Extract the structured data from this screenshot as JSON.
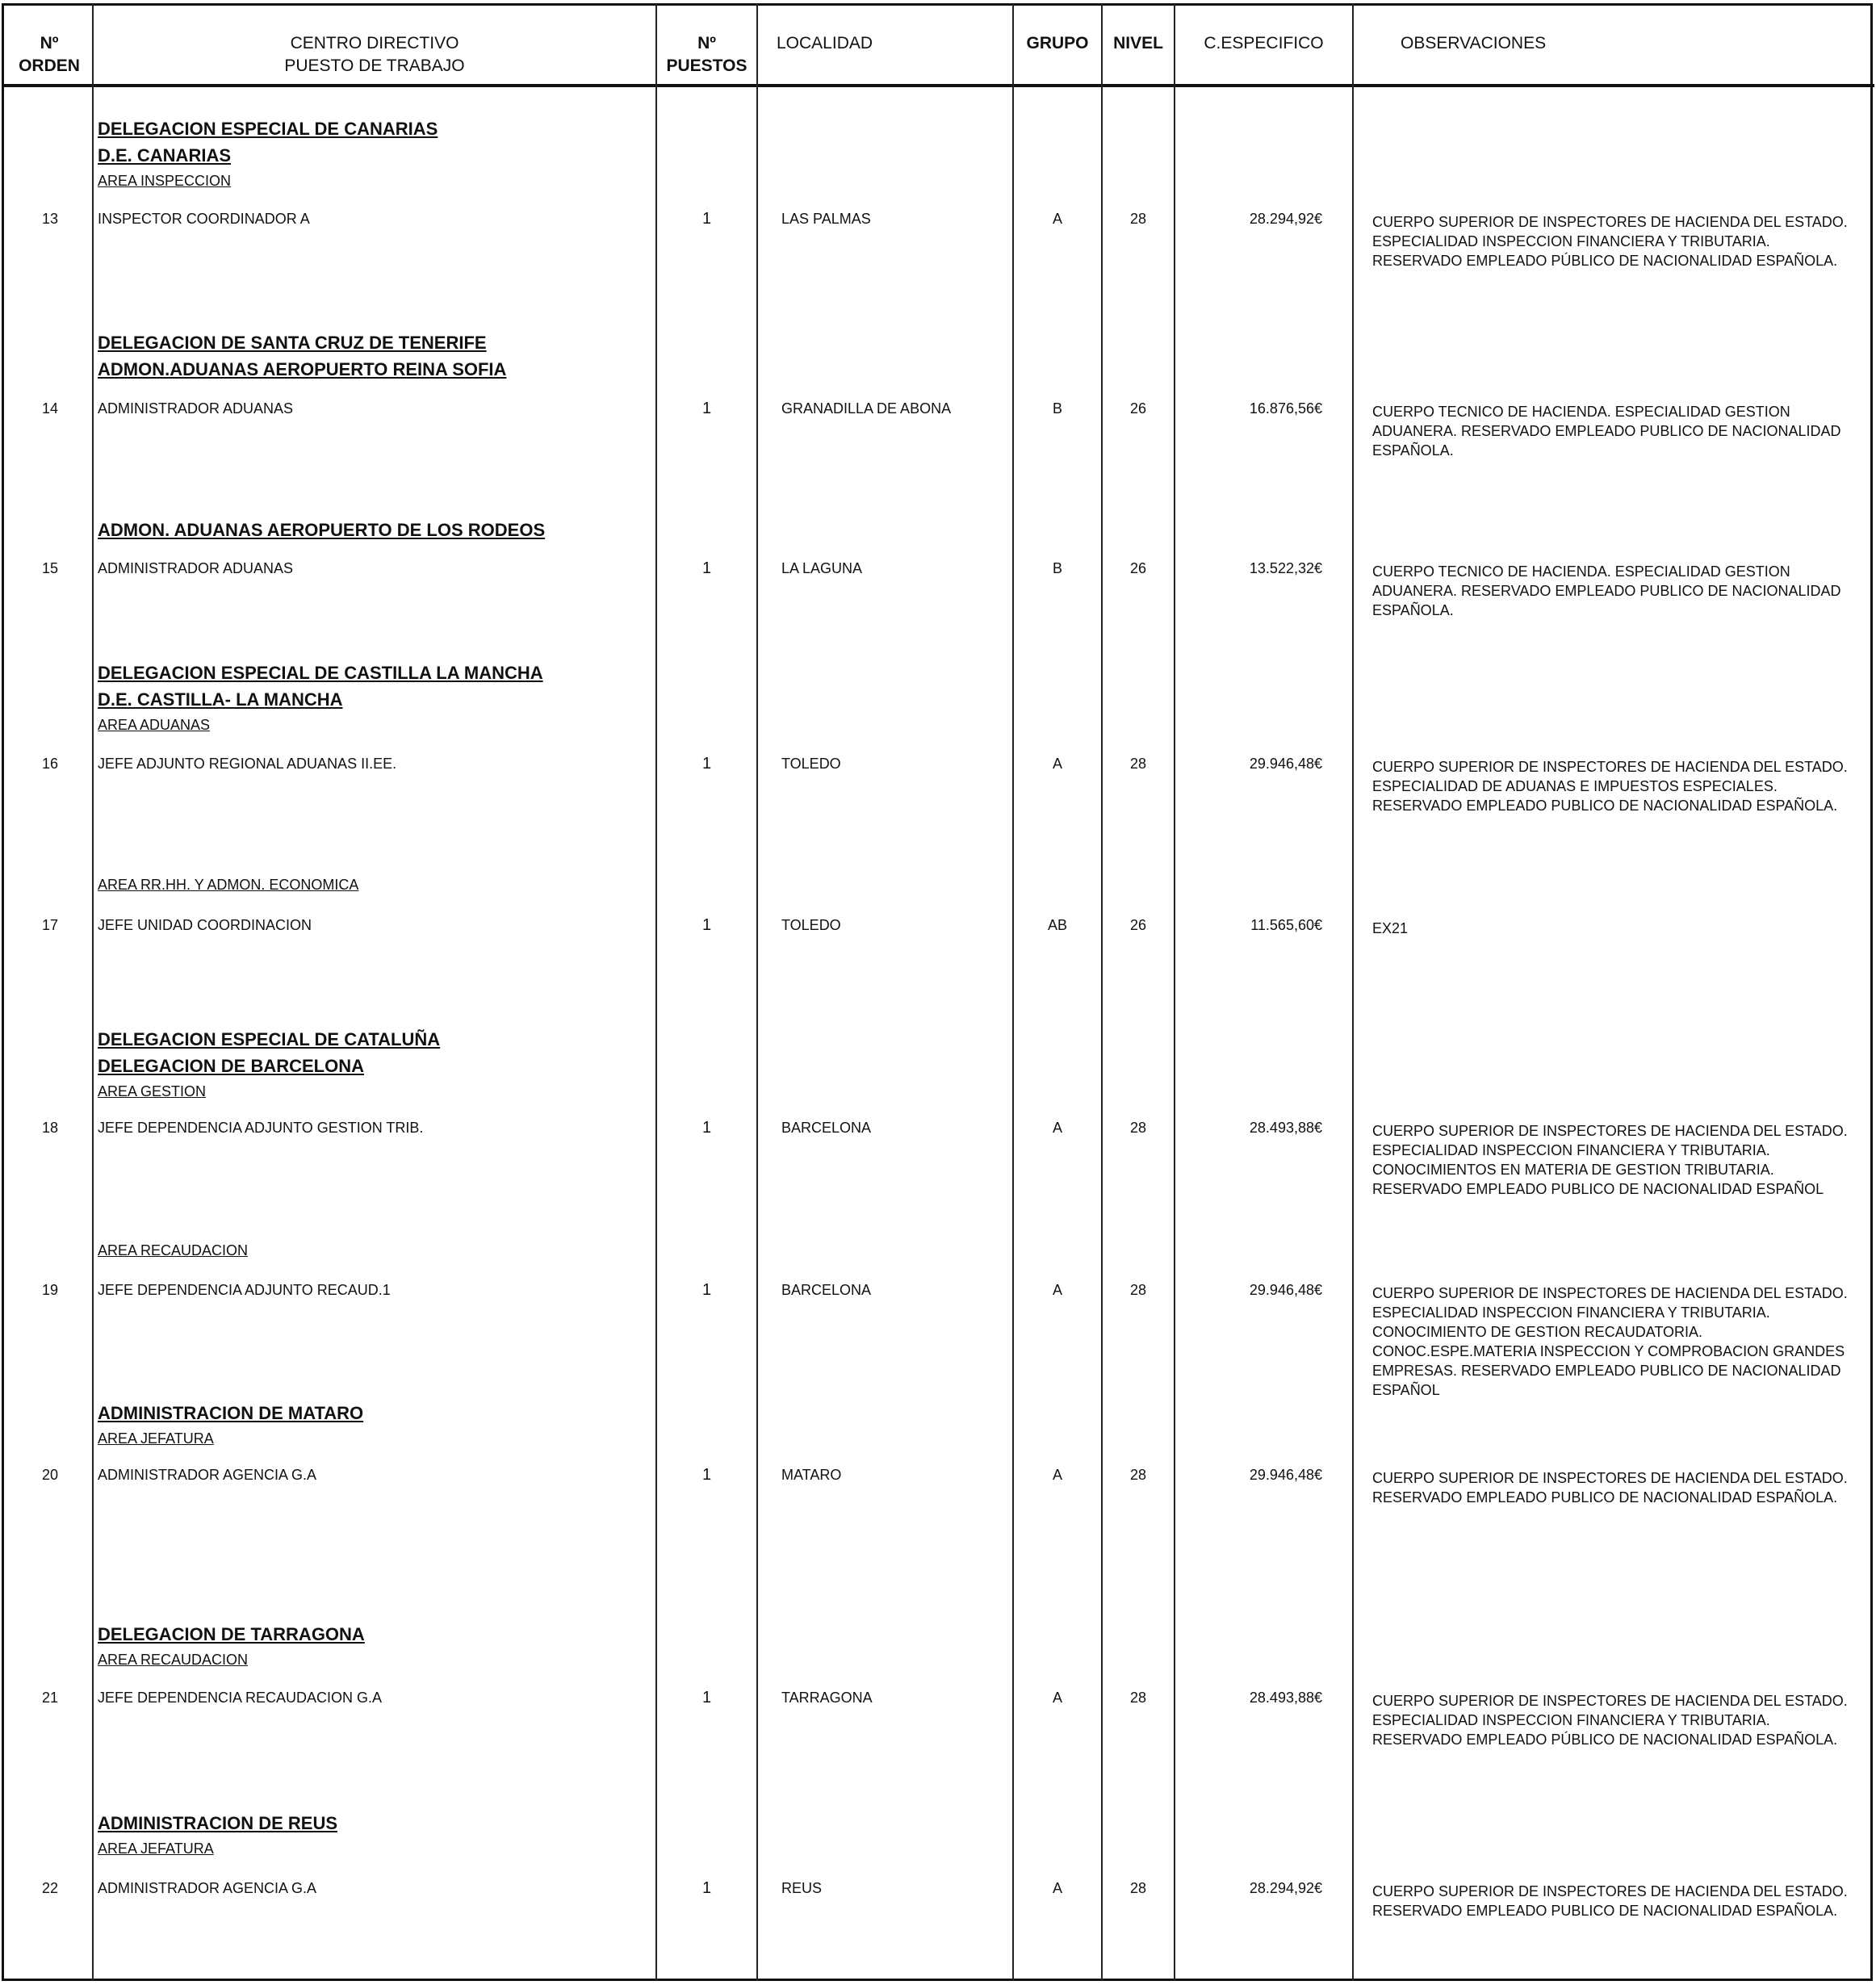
{
  "columns": {
    "orden": [
      "Nº",
      "ORDEN"
    ],
    "centro": [
      "CENTRO DIRECTIVO",
      "PUESTO DE TRABAJO"
    ],
    "puestos": [
      "Nº",
      "PUESTOS"
    ],
    "localidad": "LOCALIDAD",
    "grupo": "GRUPO",
    "nivel": "NIVEL",
    "especifico": "C.ESPECIFICO",
    "observaciones": "OBSERVACIONES"
  },
  "entries": [
    {
      "headings": [
        {
          "text": "DELEGACION ESPECIAL DE CANARIAS",
          "bold": true
        },
        {
          "text": "D.E. CANARIAS",
          "bold": true
        },
        {
          "text": "AREA INSPECCION",
          "bold": false
        }
      ],
      "orden": "13",
      "puesto": "INSPECTOR COORDINADOR A",
      "puestos": "1",
      "localidad": "LAS PALMAS",
      "grupo": "A",
      "nivel": "28",
      "especifico": "28.294,92€",
      "observaciones": "CUERPO SUPERIOR DE INSPECTORES DE HACIENDA DEL ESTADO. ESPECIALIDAD INSPECCION FINANCIERA Y TRIBUTARIA. RESERVADO EMPLEADO PÚBLICO DE NACIONALIDAD ESPAÑOLA."
    },
    {
      "headings": [
        {
          "text": "DELEGACION DE SANTA CRUZ DE TENERIFE",
          "bold": true
        },
        {
          "text": "ADMON.ADUANAS AEROPUERTO REINA SOFIA",
          "bold": true
        }
      ],
      "orden": "14",
      "puesto": "ADMINISTRADOR ADUANAS",
      "puestos": "1",
      "localidad": "GRANADILLA DE ABONA",
      "grupo": "B",
      "nivel": "26",
      "especifico": "16.876,56€",
      "observaciones": "CUERPO TECNICO DE HACIENDA. ESPECIALIDAD GESTION ADUANERA. RESERVADO EMPLEADO PUBLICO DE NACIONALIDAD ESPAÑOLA."
    },
    {
      "headings": [
        {
          "text": "ADMON. ADUANAS AEROPUERTO DE LOS RODEOS",
          "bold": true
        }
      ],
      "orden": "15",
      "puesto": "ADMINISTRADOR ADUANAS",
      "puestos": "1",
      "localidad": "LA LAGUNA",
      "grupo": "B",
      "nivel": "26",
      "especifico": "13.522,32€",
      "observaciones": "CUERPO TECNICO DE HACIENDA. ESPECIALIDAD GESTION ADUANERA. RESERVADO EMPLEADO PUBLICO DE NACIONALIDAD ESPAÑOLA."
    },
    {
      "headings": [
        {
          "text": "DELEGACION ESPECIAL DE CASTILLA LA MANCHA",
          "bold": true
        },
        {
          "text": "D.E. CASTILLA- LA MANCHA",
          "bold": true
        },
        {
          "text": "AREA ADUANAS",
          "bold": false
        }
      ],
      "orden": "16",
      "puesto": "JEFE ADJUNTO REGIONAL ADUANAS II.EE.",
      "puestos": "1",
      "localidad": "TOLEDO",
      "grupo": "A",
      "nivel": "28",
      "especifico": "29.946,48€",
      "observaciones": "CUERPO SUPERIOR DE INSPECTORES DE HACIENDA DEL ESTADO. ESPECIALIDAD DE ADUANAS E IMPUESTOS ESPECIALES. RESERVADO EMPLEADO PUBLICO DE NACIONALIDAD ESPAÑOLA."
    },
    {
      "headings": [
        {
          "text": "AREA RR.HH. Y ADMON. ECONOMICA",
          "bold": false
        }
      ],
      "orden": "17",
      "puesto": "JEFE UNIDAD COORDINACION",
      "puestos": "1",
      "localidad": "TOLEDO",
      "grupo": "AB",
      "nivel": "26",
      "especifico": "11.565,60€",
      "observaciones": "EX21"
    },
    {
      "headings": [
        {
          "text": "DELEGACION ESPECIAL DE CATALUÑA",
          "bold": true
        },
        {
          "text": "DELEGACION DE BARCELONA",
          "bold": true
        },
        {
          "text": "AREA GESTION",
          "bold": false
        }
      ],
      "orden": "18",
      "puesto": "JEFE DEPENDENCIA ADJUNTO GESTION TRIB.",
      "puestos": "1",
      "localidad": "BARCELONA",
      "grupo": "A",
      "nivel": "28",
      "especifico": "28.493,88€",
      "observaciones": "CUERPO SUPERIOR DE INSPECTORES DE HACIENDA DEL ESTADO. ESPECIALIDAD INSPECCION FINANCIERA Y TRIBUTARIA. CONOCIMIENTOS EN MATERIA DE GESTION TRIBUTARIA. RESERVADO EMPLEADO PUBLICO DE NACIONALIDAD ESPAÑOL"
    },
    {
      "headings": [
        {
          "text": "AREA RECAUDACION",
          "bold": false
        }
      ],
      "orden": "19",
      "puesto": "JEFE DEPENDENCIA ADJUNTO RECAUD.1",
      "puestos": "1",
      "localidad": "BARCELONA",
      "grupo": "A",
      "nivel": "28",
      "especifico": "29.946,48€",
      "observaciones": "CUERPO SUPERIOR DE INSPECTORES DE HACIENDA DEL ESTADO. ESPECIALIDAD INSPECCION FINANCIERA Y TRIBUTARIA. CONOCIMIENTO DE GESTION RECAUDATORIA. CONOC.ESPE.MATERIA INSPECCION Y COMPROBACION GRANDES EMPRESAS. RESERVADO EMPLEADO PUBLICO DE NACIONALIDAD ESPAÑOL"
    },
    {
      "headings": [
        {
          "text": "ADMINISTRACION DE MATARO",
          "bold": true
        },
        {
          "text": "AREA JEFATURA",
          "bold": false
        }
      ],
      "orden": "20",
      "puesto": "ADMINISTRADOR AGENCIA G.A",
      "puestos": "1",
      "localidad": "MATARO",
      "grupo": "A",
      "nivel": "28",
      "especifico": "29.946,48€",
      "observaciones": "CUERPO SUPERIOR DE INSPECTORES DE HACIENDA DEL ESTADO. RESERVADO EMPLEADO PUBLICO DE NACIONALIDAD ESPAÑOLA."
    },
    {
      "headings": [
        {
          "text": "DELEGACION DE TARRAGONA",
          "bold": true
        },
        {
          "text": "AREA RECAUDACION",
          "bold": false
        }
      ],
      "orden": "21",
      "puesto": "JEFE DEPENDENCIA RECAUDACION G.A",
      "puestos": "1",
      "localidad": "TARRAGONA",
      "grupo": "A",
      "nivel": "28",
      "especifico": "28.493,88€",
      "observaciones": "CUERPO SUPERIOR DE INSPECTORES DE HACIENDA DEL ESTADO. ESPECIALIDAD INSPECCION FINANCIERA Y TRIBUTARIA. RESERVADO EMPLEADO PÚBLICO DE NACIONALIDAD ESPAÑOLA."
    },
    {
      "headings": [
        {
          "text": "ADMINISTRACION DE REUS",
          "bold": true
        },
        {
          "text": "AREA JEFATURA",
          "bold": false
        }
      ],
      "orden": "22",
      "puesto": "ADMINISTRADOR AGENCIA G.A",
      "puestos": "1",
      "localidad": "REUS",
      "grupo": "A",
      "nivel": "28",
      "especifico": "28.294,92€",
      "observaciones": "CUERPO SUPERIOR DE INSPECTORES DE HACIENDA DEL ESTADO. RESERVADO EMPLEADO PUBLICO DE NACIONALIDAD ESPAÑOLA."
    }
  ]
}
